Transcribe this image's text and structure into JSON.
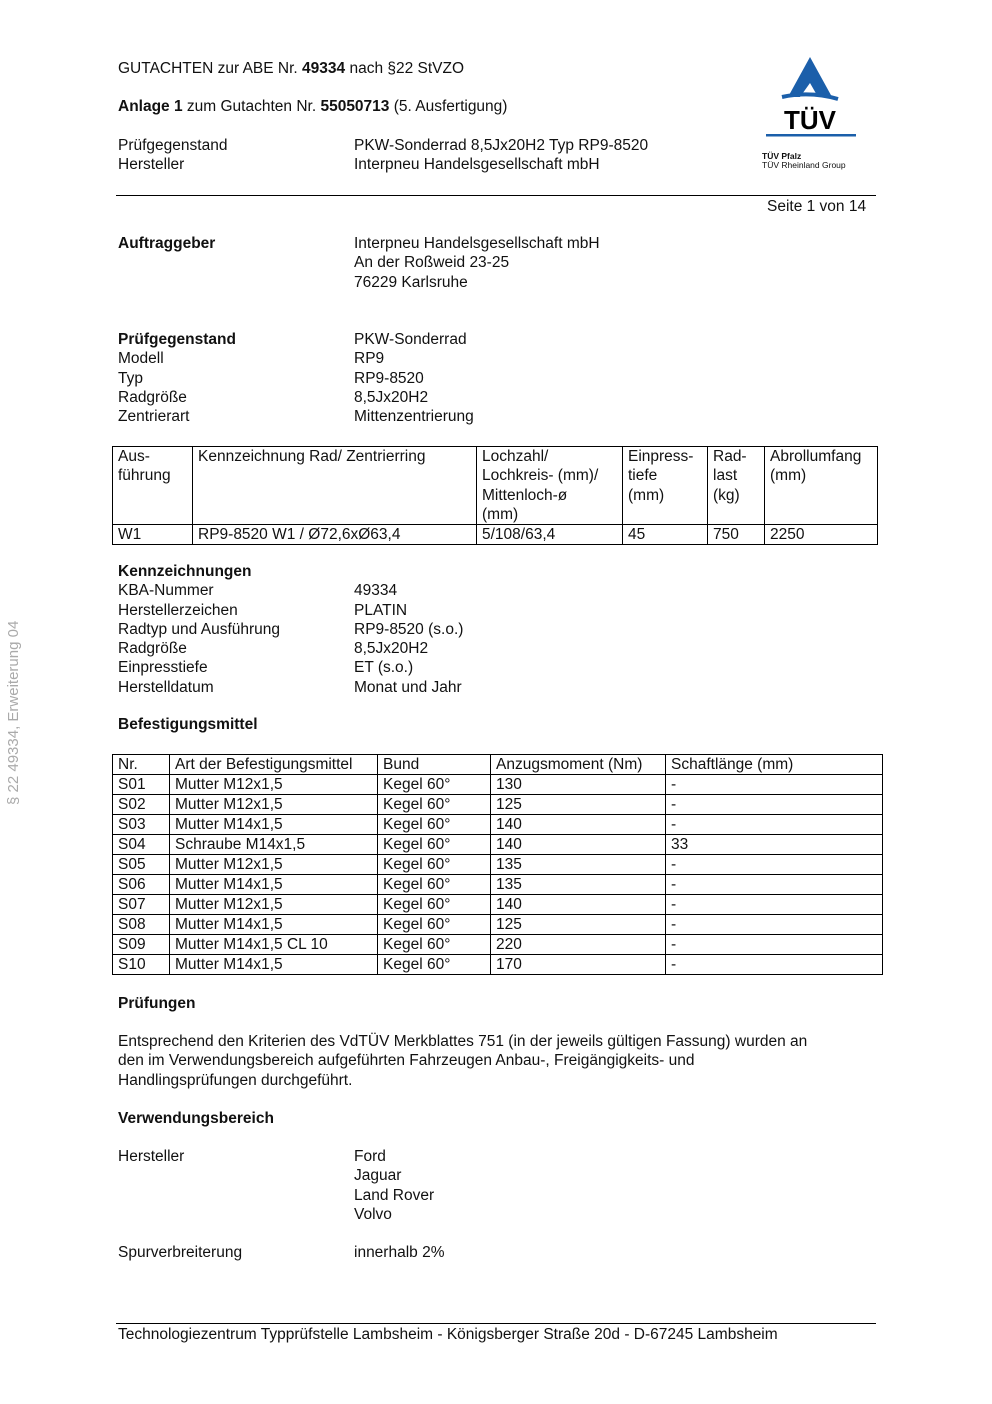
{
  "header": {
    "line1_pre": "GUTACHTEN zur ABE Nr. ",
    "line1_num": "49334",
    "line1_post": " nach §22 StVZO",
    "line2_pre": "Anlage 1",
    "line2_mid": " zum Gutachten Nr. ",
    "line2_num": "55050713",
    "line2_post": " (5. Ausfertigung)",
    "fields": [
      {
        "label": "Prüfgegenstand",
        "value": "PKW-Sonderrad 8,5Jx20H2 Typ RP9-8520"
      },
      {
        "label": "Hersteller",
        "value": "Interpneu Handelsgesellschaft mbH"
      }
    ],
    "page": "Seite 1 von 14"
  },
  "logo": {
    "text": "TÜV",
    "line1": "TÜV Pfalz",
    "line2": "TÜV Rheinland Group",
    "color": "#1b5faa"
  },
  "side_text": "§ 22  49334, Erweiterung 04",
  "auftraggeber": {
    "label": "Auftraggeber",
    "lines": [
      "Interpneu Handelsgesellschaft mbH",
      "An der Roßweid 23-25",
      "76229 Karlsruhe"
    ]
  },
  "pruefgegenstand": {
    "label": "Prüfgegenstand",
    "value": "PKW-Sonderrad",
    "rows": [
      {
        "label": "Modell",
        "value": "RP9"
      },
      {
        "label": "Typ",
        "value": "RP9-8520"
      },
      {
        "label": "Radgröße",
        "value": "8,5Jx20H2"
      },
      {
        "label": "Zentrierart",
        "value": "Mittenzentrierung"
      }
    ]
  },
  "table1": {
    "headers": [
      "Aus-\nführung",
      "Kennzeichnung Rad/ Zentrierring",
      "Lochzahl/\nLochkreis- (mm)/\nMittenloch-ø\n(mm)",
      "Einpress-\ntiefe\n(mm)",
      "Rad-\nlast\n(kg)",
      "Abrollumfang\n(mm)"
    ],
    "rows": [
      [
        "W1",
        "RP9-8520 W1 / Ø72,6xØ63,4",
        "5/108/63,4",
        "45",
        "750",
        "2250"
      ]
    ]
  },
  "kennzeichnungen": {
    "title": "Kennzeichnungen",
    "rows": [
      {
        "label": "KBA-Nummer",
        "value": "49334"
      },
      {
        "label": "Herstellerzeichen",
        "value": "PLATIN"
      },
      {
        "label": "Radtyp und Ausführung",
        "value": "RP9-8520 (s.o.)"
      },
      {
        "label": "Radgröße",
        "value": "8,5Jx20H2"
      },
      {
        "label": "Einpresstiefe",
        "value": "ET (s.o.)"
      },
      {
        "label": "Herstelldatum",
        "value": "Monat und Jahr"
      }
    ]
  },
  "befestigung": {
    "title": "Befestigungsmittel",
    "headers": [
      "Nr.",
      "Art der Befestigungsmittel",
      "Bund",
      "Anzugsmoment (Nm)",
      "Schaftlänge (mm)"
    ],
    "rows": [
      [
        "S01",
        "Mutter M12x1,5",
        "Kegel 60°",
        "130",
        "-"
      ],
      [
        "S02",
        "Mutter M12x1,5",
        "Kegel 60°",
        "125",
        "-"
      ],
      [
        "S03",
        "Mutter M14x1,5",
        "Kegel 60°",
        "140",
        "-"
      ],
      [
        "S04",
        "Schraube M14x1,5",
        "Kegel 60°",
        "140",
        "33"
      ],
      [
        "S05",
        "Mutter M12x1,5",
        "Kegel 60°",
        "135",
        "-"
      ],
      [
        "S06",
        "Mutter M14x1,5",
        "Kegel 60°",
        "135",
        "-"
      ],
      [
        "S07",
        "Mutter M12x1,5",
        "Kegel 60°",
        "140",
        "-"
      ],
      [
        "S08",
        "Mutter M14x1,5",
        "Kegel 60°",
        "125",
        "-"
      ],
      [
        "S09",
        "Mutter M14x1,5  CL 10",
        "Kegel 60°",
        "220",
        "-"
      ],
      [
        "S10",
        "Mutter M14x1,5",
        "Kegel 60°",
        "170",
        "-"
      ]
    ]
  },
  "pruefungen": {
    "title": "Prüfungen",
    "lines": [
      "Entsprechend den Kriterien des VdTÜV Merkblattes 751 (in der jeweils gültigen Fassung) wurden an",
      "den im Verwendungsbereich aufgeführten Fahrzeugen Anbau-, Freigängigkeits- und",
      "Handlingsprüfungen durchgeführt."
    ]
  },
  "verwendung": {
    "title": "Verwendungsbereich",
    "hersteller_label": "Hersteller",
    "hersteller": [
      "Ford",
      "Jaguar",
      "Land Rover",
      "Volvo"
    ],
    "spur_label": "Spurverbreiterung",
    "spur_value": "innerhalb 2%"
  },
  "footer": "Technologiezentrum Typprüfstelle Lambsheim - Königsberger Straße 20d - D-67245 Lambsheim"
}
